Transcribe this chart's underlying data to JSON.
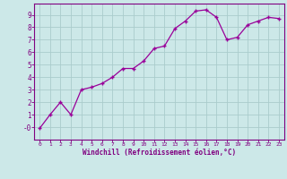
{
  "x": [
    0,
    1,
    2,
    3,
    4,
    5,
    6,
    7,
    8,
    9,
    10,
    11,
    12,
    13,
    14,
    15,
    16,
    17,
    18,
    19,
    20,
    21,
    22,
    23
  ],
  "y": [
    -0.1,
    1.0,
    2.0,
    1.0,
    3.0,
    3.2,
    3.5,
    4.0,
    4.7,
    4.7,
    5.3,
    6.3,
    6.5,
    7.9,
    8.5,
    9.3,
    9.4,
    8.8,
    7.0,
    7.2,
    8.2,
    8.5,
    8.8,
    8.7
  ],
  "line_color": "#990099",
  "marker": "+",
  "bg_color": "#cce8e8",
  "grid_color": "#aacccc",
  "xlabel": "Windchill (Refroidissement éolien,°C)",
  "xlim": [
    -0.5,
    23.5
  ],
  "ylim": [
    -1.0,
    9.9
  ],
  "ytick_vals": [
    0,
    1,
    2,
    3,
    4,
    5,
    6,
    7,
    8,
    9
  ],
  "ytick_labels": [
    "-0",
    "1",
    "2",
    "3",
    "4",
    "5",
    "6",
    "7",
    "8",
    "9"
  ],
  "xtick_vals": [
    0,
    1,
    2,
    3,
    4,
    5,
    6,
    7,
    8,
    9,
    10,
    11,
    12,
    13,
    14,
    15,
    16,
    17,
    18,
    19,
    20,
    21,
    22,
    23
  ],
  "xtick_labels": [
    "0",
    "1",
    "2",
    "3",
    "4",
    "5",
    "6",
    "7",
    "8",
    "9",
    "10",
    "11",
    "12",
    "13",
    "14",
    "15",
    "16",
    "17",
    "18",
    "19",
    "20",
    "21",
    "22",
    "23"
  ],
  "purple": "#800080"
}
